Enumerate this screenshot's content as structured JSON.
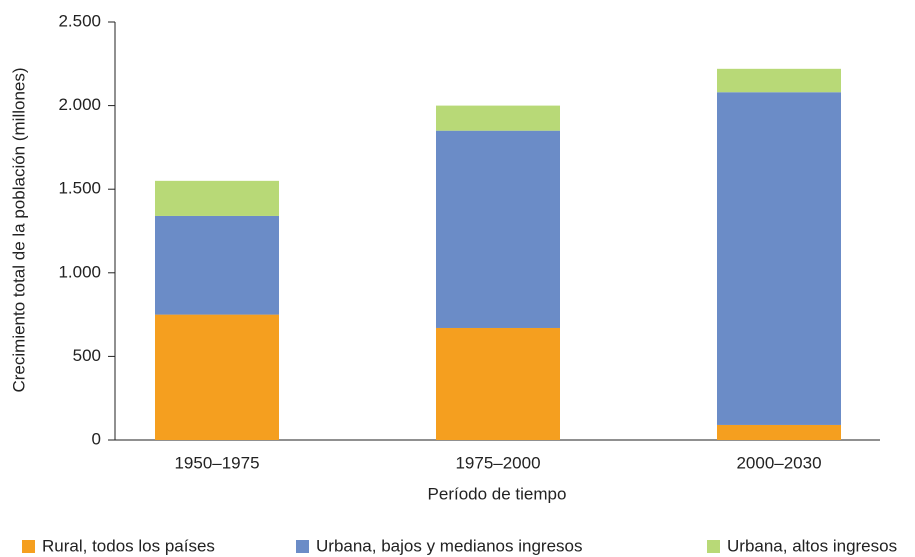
{
  "chart_data": {
    "type": "stacked_bar",
    "ylabel": "Crecimiento total de la población (millones)",
    "xlabel": "Período de tiempo",
    "categories": [
      "1950–1975",
      "1975–2000",
      "2000–2030"
    ],
    "series": [
      {
        "name": "Rural, todos los países",
        "color": "#f59f1f",
        "values": [
          750,
          670,
          90
        ]
      },
      {
        "name": "Urbana, bajos y medianos ingresos",
        "color": "#6b8cc7",
        "values": [
          590,
          1180,
          1990
        ]
      },
      {
        "name": "Urbana, altos ingresos",
        "color": "#b8d977",
        "values": [
          210,
          150,
          140
        ]
      }
    ],
    "ylim": [
      0,
      2500
    ],
    "yticks": [
      0,
      500,
      {
        "value": 1000,
        "label": "1.000"
      },
      {
        "value": 1500,
        "label": "1.500"
      },
      {
        "value": 2000,
        "label": "2.000"
      },
      {
        "value": 2500,
        "label": "2.500"
      }
    ],
    "legend": "bottom"
  }
}
